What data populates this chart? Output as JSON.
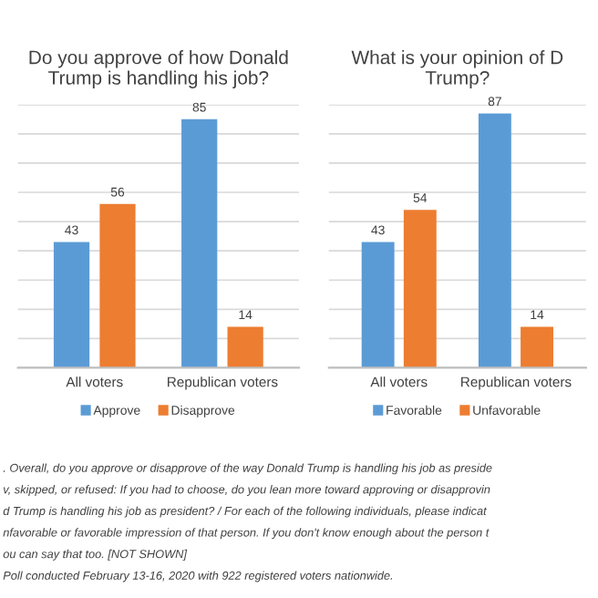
{
  "chart_data": [
    {
      "type": "bar",
      "title": "Do you approve of how Donald\nTrump is handling his job?",
      "categories": [
        "All voters",
        "Republican voters"
      ],
      "series": [
        {
          "name": "Approve",
          "color": "#5b9bd5",
          "values": [
            43,
            85
          ]
        },
        {
          "name": "Disapprove",
          "color": "#ed7d31",
          "values": [
            56,
            14
          ]
        }
      ],
      "ylim": [
        0,
        90
      ],
      "yticks": [
        {
          "value": 0,
          "label": null
        },
        {
          "value": 10,
          "label": null
        },
        {
          "value": 20,
          "label": null
        },
        {
          "value": 30,
          "label": null
        },
        {
          "value": 40,
          "label": null
        },
        {
          "value": 50,
          "label": null
        },
        {
          "value": 60,
          "label": null
        },
        {
          "value": 70,
          "label": null
        },
        {
          "value": 80,
          "label": null
        },
        {
          "value": 90,
          "label": null
        }
      ],
      "tick_labels": "x",
      "grid": "y",
      "legend": "bottom",
      "data_labels": true,
      "annotations": [
        ". Overall, do you approve or disapprove of the way Donald Trump is handling his job as preside",
        "v, skipped, or refused: If you had to choose, do you lean more toward approving or disapprovin",
        "d Trump is handling his job as president? / For each of the following individuals, please indicat",
        "nfavorable or favorable impression of that person. If you don't know enough about the person t",
        "ou can say that too. [NOT SHOWN]",
        "Poll conducted February 13-16, 2020 with 922 registered voters nationwide."
      ]
    },
    {
      "type": "bar",
      "title": "What is your opinion of D\nTrump?",
      "categories": [
        "All voters",
        "Republican voters"
      ],
      "series": [
        {
          "name": "Favorable",
          "color": "#5b9bd5",
          "values": [
            43,
            87
          ]
        },
        {
          "name": "Unfavorable",
          "color": "#ed7d31",
          "values": [
            54,
            14
          ]
        }
      ],
      "ylim": [
        0,
        90
      ],
      "yticks": [
        {
          "value": 0,
          "label": null
        },
        {
          "value": 10,
          "label": null
        },
        {
          "value": 20,
          "label": null
        },
        {
          "value": 30,
          "label": null
        },
        {
          "value": 40,
          "label": null
        },
        {
          "value": 50,
          "label": null
        },
        {
          "value": 60,
          "label": null
        },
        {
          "value": 70,
          "label": null
        },
        {
          "value": 80,
          "label": null
        },
        {
          "value": 90,
          "label": null
        }
      ],
      "tick_labels": "x",
      "grid": "y",
      "legend": "bottom",
      "data_labels": true
    }
  ]
}
